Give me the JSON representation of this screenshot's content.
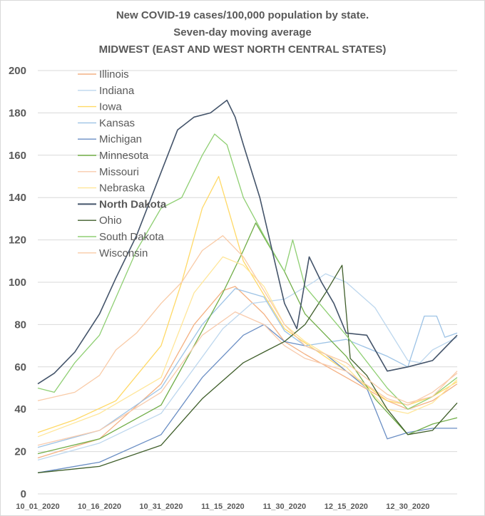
{
  "chart_data": {
    "type": "line",
    "title_lines": [
      "New COVID-19 cases/100,000 population by state.",
      "Seven-day moving average",
      "MIDWEST (EAST AND WEST NORTH CENTRAL STATES)"
    ],
    "xlabel": "",
    "ylabel": "",
    "ylim": [
      0,
      200
    ],
    "yticks": [
      0,
      20,
      40,
      60,
      80,
      100,
      120,
      140,
      160,
      180,
      200
    ],
    "x_start": "10_01_2020",
    "x_end": "01_11_2021",
    "xticks": [
      "10_01_2020",
      "10_16_2020",
      "10_31_2020",
      "11_15_2020",
      "11_30_2020",
      "12_15_2020",
      "12_30_2020"
    ],
    "grid": "horizontal",
    "legend_position": "top-left",
    "series": [
      {
        "name": "Illinois",
        "color": "#f4b183",
        "bold": false,
        "points": [
          [
            "10_01_2020",
            17
          ],
          [
            "10_16_2020",
            26
          ],
          [
            "10_31_2020",
            52
          ],
          [
            "11_08_2020",
            80
          ],
          [
            "11_15_2020",
            96
          ],
          [
            "11_18_2020",
            98
          ],
          [
            "11_25_2020",
            85
          ],
          [
            "11_30_2020",
            72
          ],
          [
            "12_05_2020",
            66
          ],
          [
            "12_15_2020",
            55
          ],
          [
            "12_25_2020",
            44
          ],
          [
            "12_30_2020",
            40
          ],
          [
            "01_05_2021",
            44
          ],
          [
            "01_11_2021",
            52
          ]
        ]
      },
      {
        "name": "Indiana",
        "color": "#bdd7ee",
        "bold": false,
        "points": [
          [
            "10_01_2020",
            16
          ],
          [
            "10_16_2020",
            24
          ],
          [
            "10_31_2020",
            38
          ],
          [
            "11_15_2020",
            78
          ],
          [
            "11_22_2020",
            90
          ],
          [
            "11_30_2020",
            92
          ],
          [
            "12_07_2020",
            100
          ],
          [
            "12_10_2020",
            104
          ],
          [
            "12_15_2020",
            100
          ],
          [
            "12_22_2020",
            88
          ],
          [
            "12_30_2020",
            63
          ],
          [
            "01_02_2021",
            62
          ],
          [
            "01_05_2021",
            68
          ],
          [
            "01_11_2021",
            74
          ]
        ]
      },
      {
        "name": "Iowa",
        "color": "#ffd966",
        "bold": false,
        "points": [
          [
            "10_01_2020",
            29
          ],
          [
            "10_10_2020",
            35
          ],
          [
            "10_20_2020",
            44
          ],
          [
            "10_31_2020",
            70
          ],
          [
            "11_05_2020",
            100
          ],
          [
            "11_10_2020",
            135
          ],
          [
            "11_14_2020",
            150
          ],
          [
            "11_20_2020",
            110
          ],
          [
            "11_30_2020",
            78
          ],
          [
            "12_15_2020",
            58
          ],
          [
            "12_25_2020",
            44
          ],
          [
            "12_30_2020",
            42
          ],
          [
            "01_05_2021",
            46
          ],
          [
            "01_11_2021",
            53
          ]
        ]
      },
      {
        "name": "Kansas",
        "color": "#9dc3e6",
        "bold": false,
        "points": [
          [
            "10_01_2020",
            22
          ],
          [
            "10_16_2020",
            30
          ],
          [
            "10_31_2020",
            50
          ],
          [
            "11_10_2020",
            80
          ],
          [
            "11_18_2020",
            97
          ],
          [
            "11_25_2020",
            93
          ],
          [
            "11_30_2020",
            77
          ],
          [
            "12_05_2020",
            70
          ],
          [
            "12_15_2020",
            73
          ],
          [
            "12_25_2020",
            65
          ],
          [
            "12_30_2020",
            60
          ],
          [
            "01_03_2021",
            84
          ],
          [
            "01_06_2021",
            84
          ],
          [
            "01_08_2021",
            74
          ],
          [
            "01_11_2021",
            76
          ]
        ]
      },
      {
        "name": "Michigan",
        "color": "#6a8ec4",
        "bold": false,
        "points": [
          [
            "10_01_2020",
            10
          ],
          [
            "10_16_2020",
            15
          ],
          [
            "10_31_2020",
            28
          ],
          [
            "11_10_2020",
            55
          ],
          [
            "11_20_2020",
            75
          ],
          [
            "11_25_2020",
            80
          ],
          [
            "11_30_2020",
            72
          ],
          [
            "12_05_2020",
            70
          ],
          [
            "12_10_2020",
            66
          ],
          [
            "12_15_2020",
            58
          ],
          [
            "12_20_2020",
            50
          ],
          [
            "12_25_2020",
            26
          ],
          [
            "12_30_2020",
            29
          ],
          [
            "01_05_2021",
            31
          ],
          [
            "01_11_2021",
            31
          ]
        ]
      },
      {
        "name": "Minnesota",
        "color": "#70ad47",
        "bold": false,
        "points": [
          [
            "10_01_2020",
            19
          ],
          [
            "10_16_2020",
            26
          ],
          [
            "10_31_2020",
            42
          ],
          [
            "11_08_2020",
            70
          ],
          [
            "11_15_2020",
            95
          ],
          [
            "11_20_2020",
            115
          ],
          [
            "11_23_2020",
            128
          ],
          [
            "11_26_2020",
            118
          ],
          [
            "11_30_2020",
            105
          ],
          [
            "12_05_2020",
            85
          ],
          [
            "12_15_2020",
            65
          ],
          [
            "12_22_2020",
            45
          ],
          [
            "12_30_2020",
            28
          ],
          [
            "01_05_2021",
            33
          ],
          [
            "01_11_2021",
            36
          ]
        ]
      },
      {
        "name": "Missouri",
        "color": "#f8cbad",
        "bold": false,
        "points": [
          [
            "10_01_2020",
            23
          ],
          [
            "10_16_2020",
            30
          ],
          [
            "10_31_2020",
            48
          ],
          [
            "11_10_2020",
            75
          ],
          [
            "11_18_2020",
            86
          ],
          [
            "11_25_2020",
            80
          ],
          [
            "11_30_2020",
            70
          ],
          [
            "12_05_2020",
            64
          ],
          [
            "12_15_2020",
            58
          ],
          [
            "12_25_2020",
            45
          ],
          [
            "12_30_2020",
            42
          ],
          [
            "01_05_2021",
            48
          ],
          [
            "01_11_2021",
            57
          ]
        ]
      },
      {
        "name": "Nebraska",
        "color": "#ffe699",
        "bold": false,
        "points": [
          [
            "10_01_2020",
            27
          ],
          [
            "10_16_2020",
            38
          ],
          [
            "10_31_2020",
            55
          ],
          [
            "11_08_2020",
            95
          ],
          [
            "11_15_2020",
            112
          ],
          [
            "11_20_2020",
            108
          ],
          [
            "11_25_2020",
            98
          ],
          [
            "11_30_2020",
            80
          ],
          [
            "12_05_2020",
            72
          ],
          [
            "12_15_2020",
            60
          ],
          [
            "12_25_2020",
            40
          ],
          [
            "12_30_2020",
            38
          ],
          [
            "01_05_2021",
            43
          ],
          [
            "01_11_2021",
            54
          ]
        ]
      },
      {
        "name": "North Dakota",
        "color": "#44546a",
        "bold": true,
        "points": [
          [
            "10_01_2020",
            52
          ],
          [
            "10_05_2020",
            57
          ],
          [
            "10_10_2020",
            67
          ],
          [
            "10_16_2020",
            85
          ],
          [
            "10_20_2020",
            102
          ],
          [
            "10_25_2020",
            122
          ],
          [
            "10_31_2020",
            152
          ],
          [
            "11_04_2020",
            172
          ],
          [
            "11_08_2020",
            178
          ],
          [
            "11_12_2020",
            180
          ],
          [
            "11_16_2020",
            186
          ],
          [
            "11_18_2020",
            178
          ],
          [
            "11_20_2020",
            165
          ],
          [
            "11_24_2020",
            140
          ],
          [
            "11_27_2020",
            115
          ],
          [
            "11_30_2020",
            90
          ],
          [
            "12_03_2020",
            78
          ],
          [
            "12_06_2020",
            112
          ],
          [
            "12_09_2020",
            100
          ],
          [
            "12_12_2020",
            90
          ],
          [
            "12_15_2020",
            76
          ],
          [
            "12_20_2020",
            75
          ],
          [
            "12_25_2020",
            58
          ],
          [
            "12_30_2020",
            60
          ],
          [
            "01_05_2021",
            63
          ],
          [
            "01_11_2021",
            75
          ]
        ]
      },
      {
        "name": "Ohio",
        "color": "#3f5e2a",
        "bold": false,
        "points": [
          [
            "10_01_2020",
            10
          ],
          [
            "10_16_2020",
            13
          ],
          [
            "10_31_2020",
            23
          ],
          [
            "11_10_2020",
            45
          ],
          [
            "11_20_2020",
            62
          ],
          [
            "11_26_2020",
            68
          ],
          [
            "11_30_2020",
            72
          ],
          [
            "12_05_2020",
            80
          ],
          [
            "12_10_2020",
            95
          ],
          [
            "12_14_2020",
            108
          ],
          [
            "12_16_2020",
            64
          ],
          [
            "12_20_2020",
            56
          ],
          [
            "12_25_2020",
            40
          ],
          [
            "12_30_2020",
            28
          ],
          [
            "01_05_2021",
            30
          ],
          [
            "01_11_2021",
            43
          ]
        ]
      },
      {
        "name": "South Dakota",
        "color": "#8fcf73",
        "bold": false,
        "points": [
          [
            "10_01_2020",
            50
          ],
          [
            "10_05_2020",
            48
          ],
          [
            "10_10_2020",
            62
          ],
          [
            "10_16_2020",
            75
          ],
          [
            "10_25_2020",
            115
          ],
          [
            "10_31_2020",
            135
          ],
          [
            "11_05_2020",
            140
          ],
          [
            "11_10_2020",
            160
          ],
          [
            "11_13_2020",
            170
          ],
          [
            "11_16_2020",
            165
          ],
          [
            "11_20_2020",
            140
          ],
          [
            "11_25_2020",
            122
          ],
          [
            "11_30_2020",
            105
          ],
          [
            "12_02_2020",
            120
          ],
          [
            "12_05_2020",
            98
          ],
          [
            "12_15_2020",
            75
          ],
          [
            "12_25_2020",
            50
          ],
          [
            "12_30_2020",
            40
          ],
          [
            "01_05_2021",
            46
          ],
          [
            "01_11_2021",
            55
          ]
        ]
      },
      {
        "name": "Wisconsin",
        "color": "#f9cba7",
        "bold": false,
        "points": [
          [
            "10_01_2020",
            44
          ],
          [
            "10_10_2020",
            48
          ],
          [
            "10_16_2020",
            56
          ],
          [
            "10_20_2020",
            68
          ],
          [
            "10_25_2020",
            76
          ],
          [
            "10_31_2020",
            90
          ],
          [
            "11_05_2020",
            100
          ],
          [
            "11_10_2020",
            115
          ],
          [
            "11_15_2020",
            122
          ],
          [
            "11_20_2020",
            112
          ],
          [
            "11_25_2020",
            96
          ],
          [
            "11_30_2020",
            80
          ],
          [
            "12_05_2020",
            70
          ],
          [
            "12_15_2020",
            62
          ],
          [
            "12_25_2020",
            47
          ],
          [
            "12_30_2020",
            43
          ],
          [
            "01_05_2021",
            46
          ],
          [
            "01_11_2021",
            58
          ]
        ]
      }
    ]
  }
}
